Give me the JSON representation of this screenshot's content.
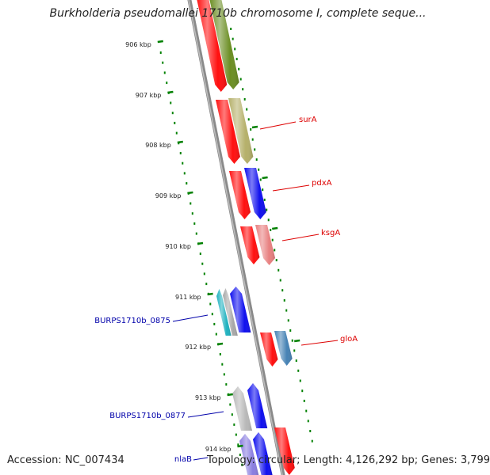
{
  "title": "Burkholderia pseudomallei 1710b chromosome I, complete seque...",
  "footer": {
    "accession": "Accession: NC_007434",
    "summary": "Topology: circular; Length: 4,126,292 bp; Genes: 3,799"
  },
  "colors": {
    "backbone": "#8a8a8a",
    "tick": "#008000",
    "label_forward": "#dd0000",
    "label_reverse": "#0000aa"
  },
  "ticks": [
    {
      "label": "906 kbp"
    },
    {
      "label": "907 kbp"
    },
    {
      "label": "908 kbp"
    },
    {
      "label": "909 kbp"
    },
    {
      "label": "910 kbp"
    },
    {
      "label": "911 kbp"
    },
    {
      "label": "912 kbp"
    },
    {
      "label": "913 kbp"
    },
    {
      "label": "914 kbp"
    }
  ],
  "gene_labels": [
    {
      "text": "surA",
      "strand": "forward"
    },
    {
      "text": "pdxA",
      "strand": "forward"
    },
    {
      "text": "ksgA",
      "strand": "forward"
    },
    {
      "text": "gloA",
      "strand": "forward"
    },
    {
      "text": "BURPS1710b_0875",
      "strand": "reverse"
    },
    {
      "text": "BURPS1710b_0877",
      "strand": "reverse"
    },
    {
      "text": "nlaB",
      "strand": "reverse"
    }
  ],
  "features": [
    {
      "color": "#ff1010",
      "direction": "down"
    },
    {
      "color": "#6b8e23",
      "direction": "down"
    },
    {
      "color": "#ff1010",
      "direction": "down"
    },
    {
      "color": "#b5b06a",
      "direction": "down"
    },
    {
      "color": "#ff1010",
      "direction": "down"
    },
    {
      "color": "#1010ee",
      "direction": "down"
    },
    {
      "color": "#ff1010",
      "direction": "down"
    },
    {
      "color": "#e88080",
      "direction": "down"
    },
    {
      "color": "#20b2c0",
      "direction": "up"
    },
    {
      "color": "#a8a8a8",
      "direction": "up"
    },
    {
      "color": "#1010ee",
      "direction": "up"
    },
    {
      "color": "#ff1010",
      "direction": "down"
    },
    {
      "color": "#4682b4",
      "direction": "down"
    },
    {
      "color": "#b8b8b8",
      "direction": "up"
    },
    {
      "color": "#1010ee",
      "direction": "up"
    },
    {
      "color": "#8a7ee0",
      "direction": "up"
    },
    {
      "color": "#1010ee",
      "direction": "up"
    },
    {
      "color": "#ff1010",
      "direction": "down"
    }
  ]
}
